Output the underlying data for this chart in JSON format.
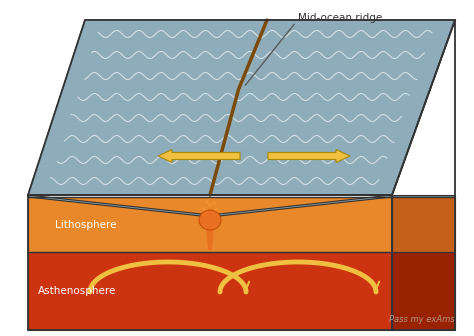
{
  "label_mid_ocean": "Mid-ocean ridge",
  "label_litho": "Lithosphere",
  "label_asthen": "Asthenosphere",
  "watermark": "Pass my exAms",
  "bg_color": "#ffffff",
  "ocean_color": "#a8d4e6",
  "ocean_top_color": "#c8e8f4",
  "plate_color": "#8B9DA8",
  "plate_dark_color": "#6B7D88",
  "litho_color": "#E8882A",
  "litho_dark_color": "#C4601A",
  "asthen_color": "#CC3311",
  "asthen_dark_color": "#992200",
  "arrow_color": "#F0C040",
  "arrow_edge": "#AA8800",
  "magma_color": "#E87020",
  "text_color": "#333333",
  "watermark_color": "#BBBBBB",
  "outline_color": "#333333"
}
